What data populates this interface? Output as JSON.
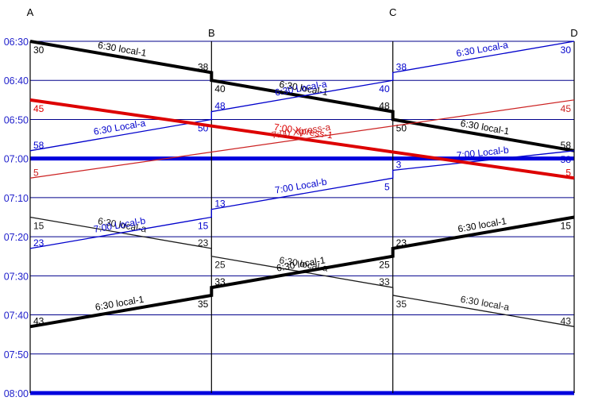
{
  "page": {
    "background": "#ffffff"
  },
  "style": {
    "grid_color": "#00008b",
    "major_grid_color": "#0000dd",
    "tick_label_color": "#2222cc",
    "station_line_color": "#000000",
    "station_label_color": "#000000",
    "grid_width": 1,
    "major_grid_width": 5
  },
  "chart_data": {
    "type": "line",
    "subtype": "train-time-distance-string-diagram",
    "title": "",
    "xlabel": "",
    "ylabel": "",
    "x_axis": {
      "stations": [
        {
          "name": "A",
          "pos": 0,
          "label_row": "high"
        },
        {
          "name": "B",
          "pos": 1,
          "label_row": "low"
        },
        {
          "name": "C",
          "pos": 2,
          "label_row": "high"
        },
        {
          "name": "D",
          "pos": 3,
          "label_row": "low"
        }
      ]
    },
    "y_axis": {
      "start": "06:30",
      "end": "08:00",
      "tick_interval_min": 10,
      "ticks": [
        {
          "time": "06:30",
          "major": false
        },
        {
          "time": "06:40",
          "major": false
        },
        {
          "time": "06:50",
          "major": false
        },
        {
          "time": "07:00",
          "major": true
        },
        {
          "time": "07:10",
          "major": false
        },
        {
          "time": "07:20",
          "major": false
        },
        {
          "time": "07:30",
          "major": false
        },
        {
          "time": "07:40",
          "major": false
        },
        {
          "time": "07:50",
          "major": false
        },
        {
          "time": "08:00",
          "major": true
        }
      ]
    },
    "legend": "none",
    "grid": "on",
    "trains": [
      {
        "id": "local-a-return",
        "name": "6:30 local-a",
        "color": "#1a1a1a",
        "width": 1.3,
        "name_label_segments": [
          0,
          1,
          2
        ],
        "stops": [
          {
            "station": "A",
            "dep": "07:15",
            "dep_label": "15"
          },
          {
            "station": "B",
            "arr": "07:23",
            "arr_label": "23",
            "dep": "07:25",
            "dep_label": "25"
          },
          {
            "station": "C",
            "arr": "07:33",
            "arr_label": "33",
            "dep": "07:35",
            "dep_label": "35"
          },
          {
            "station": "D",
            "arr": "07:43",
            "arr_label": "43"
          }
        ]
      },
      {
        "id": "local-1-outbound",
        "name": "6:30 local-1",
        "color": "#000000",
        "width": 4,
        "name_label_segments": [
          0,
          1,
          2
        ],
        "stops": [
          {
            "station": "A",
            "dep": "06:30",
            "dep_label": "30"
          },
          {
            "station": "B",
            "arr": "06:38",
            "arr_label": "38",
            "dep": "06:40",
            "dep_label": "40"
          },
          {
            "station": "C",
            "arr": "06:48",
            "arr_label": "48",
            "dep": "06:50",
            "dep_label": "50"
          },
          {
            "station": "D",
            "arr": "06:58",
            "arr_label": "58"
          }
        ]
      },
      {
        "id": "local-1-return",
        "name": "6:30 local-1",
        "color": "#000000",
        "width": 4,
        "name_label_segments": [
          0,
          1,
          2
        ],
        "stops": [
          {
            "station": "D",
            "dep": "07:15",
            "dep_label": "15"
          },
          {
            "station": "C",
            "arr": "07:23",
            "arr_label": "23",
            "dep": "07:25",
            "dep_label": "25"
          },
          {
            "station": "B",
            "arr": "07:33",
            "arr_label": "33",
            "dep": "07:35",
            "dep_label": "35"
          },
          {
            "station": "A",
            "arr": "07:43",
            "arr_label": "43"
          }
        ]
      },
      {
        "id": "local-b",
        "name": "7:00 Local-b",
        "color": "#0000cc",
        "width": 1.3,
        "name_label_segments": [
          0,
          1,
          2
        ],
        "stops": [
          {
            "station": "D",
            "dep": "06:58",
            "dep_label": "58"
          },
          {
            "station": "C",
            "arr": "07:03",
            "arr_label": "3",
            "dep": "07:05",
            "dep_label": "5"
          },
          {
            "station": "B",
            "arr": "07:13",
            "arr_label": "13",
            "dep": "07:15",
            "dep_label": "15"
          },
          {
            "station": "A",
            "arr": "07:23",
            "arr_label": "23"
          }
        ]
      },
      {
        "id": "local-a",
        "name": "6:30 Local-a",
        "color": "#0000cc",
        "width": 1.3,
        "name_label_segments": [
          0,
          1,
          2
        ],
        "stops": [
          {
            "station": "D",
            "dep": "06:30",
            "dep_label": "30"
          },
          {
            "station": "C",
            "arr": "06:38",
            "arr_label": "38",
            "dep": "06:40",
            "dep_label": "40"
          },
          {
            "station": "B",
            "arr": "06:48",
            "arr_label": "48",
            "dep": "06:50",
            "dep_label": "50"
          },
          {
            "station": "A",
            "arr": "06:58",
            "arr_label": "58"
          }
        ]
      },
      {
        "id": "xpress-1",
        "name": "7:00 Xpress-1",
        "color": "#dd0000",
        "width": 4,
        "name_label_segments": [
          0
        ],
        "stops": [
          {
            "station": "A",
            "dep": "06:45",
            "dep_label": "45"
          },
          {
            "station": "D",
            "arr": "07:05",
            "arr_label": "5"
          }
        ]
      },
      {
        "id": "xpress-a",
        "name": "7:00 Xpress-a",
        "color": "#cc2222",
        "width": 1.2,
        "name_label_segments": [
          0
        ],
        "stops": [
          {
            "station": "D",
            "dep": "06:45",
            "dep_label": "45"
          },
          {
            "station": "A",
            "arr": "07:05",
            "arr_label": "5"
          }
        ]
      }
    ]
  }
}
